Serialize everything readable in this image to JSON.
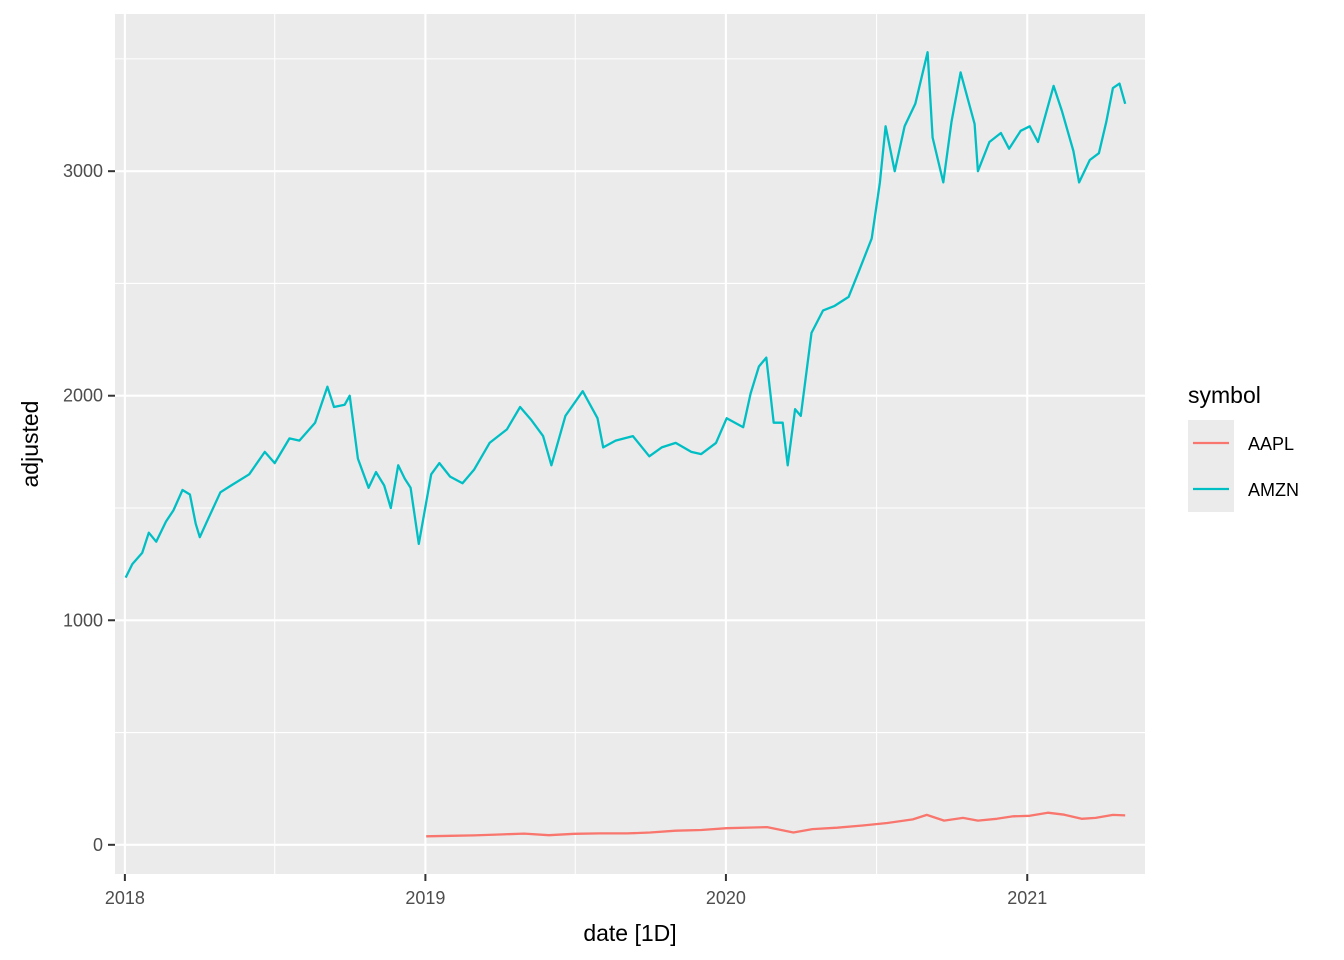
{
  "chart_data": {
    "type": "line",
    "xlabel": "date [1D]",
    "ylabel": "adjusted",
    "x_ticks": [
      "2018",
      "2019",
      "2020",
      "2021"
    ],
    "y_ticks": [
      "0",
      "1000",
      "2000",
      "3000"
    ],
    "xlim": [
      "2017-12-20",
      "2021-05-24"
    ],
    "ylim": [
      -130,
      3700
    ],
    "grid": true,
    "legend": {
      "title": "symbol",
      "position": "right",
      "entries": [
        "AAPL",
        "AMZN"
      ]
    },
    "colors": {
      "AAPL": "#F8766D",
      "AMZN": "#00BFC4",
      "panel": "#EBEBEB",
      "grid": "#FFFFFF"
    },
    "series": [
      {
        "name": "AAPL",
        "points": [
          [
            "2019-01-02",
            38
          ],
          [
            "2019-02-01",
            40
          ],
          [
            "2019-03-01",
            42
          ],
          [
            "2019-04-01",
            46
          ],
          [
            "2019-05-01",
            50
          ],
          [
            "2019-05-31",
            43
          ],
          [
            "2019-07-01",
            49
          ],
          [
            "2019-08-01",
            51
          ],
          [
            "2019-09-03",
            51
          ],
          [
            "2019-10-01",
            55
          ],
          [
            "2019-11-01",
            63
          ],
          [
            "2019-12-02",
            66
          ],
          [
            "2020-01-02",
            74
          ],
          [
            "2020-02-03",
            77
          ],
          [
            "2020-02-20",
            79
          ],
          [
            "2020-03-23",
            55
          ],
          [
            "2020-04-15",
            70
          ],
          [
            "2020-05-15",
            76
          ],
          [
            "2020-06-15",
            86
          ],
          [
            "2020-07-15",
            97
          ],
          [
            "2020-08-15",
            113
          ],
          [
            "2020-09-01",
            133
          ],
          [
            "2020-09-22",
            108
          ],
          [
            "2020-10-15",
            120
          ],
          [
            "2020-11-02",
            108
          ],
          [
            "2020-11-25",
            116
          ],
          [
            "2020-12-15",
            127
          ],
          [
            "2021-01-04",
            129
          ],
          [
            "2021-01-26",
            143
          ],
          [
            "2021-02-15",
            134
          ],
          [
            "2021-03-08",
            116
          ],
          [
            "2021-03-25",
            120
          ],
          [
            "2021-04-15",
            133
          ],
          [
            "2021-04-30",
            131
          ]
        ]
      },
      {
        "name": "AMZN",
        "points": [
          [
            "2018-01-02",
            1190
          ],
          [
            "2018-01-10",
            1250
          ],
          [
            "2018-01-22",
            1300
          ],
          [
            "2018-01-30",
            1390
          ],
          [
            "2018-02-08",
            1350
          ],
          [
            "2018-02-20",
            1440
          ],
          [
            "2018-03-01",
            1490
          ],
          [
            "2018-03-12",
            1580
          ],
          [
            "2018-03-21",
            1560
          ],
          [
            "2018-03-28",
            1430
          ],
          [
            "2018-04-02",
            1370
          ],
          [
            "2018-04-12",
            1450
          ],
          [
            "2018-04-27",
            1570
          ],
          [
            "2018-05-10",
            1600
          ],
          [
            "2018-06-01",
            1650
          ],
          [
            "2018-06-20",
            1750
          ],
          [
            "2018-07-02",
            1700
          ],
          [
            "2018-07-20",
            1810
          ],
          [
            "2018-08-01",
            1800
          ],
          [
            "2018-08-20",
            1880
          ],
          [
            "2018-09-04",
            2040
          ],
          [
            "2018-09-12",
            1950
          ],
          [
            "2018-09-25",
            1960
          ],
          [
            "2018-10-01",
            2000
          ],
          [
            "2018-10-11",
            1720
          ],
          [
            "2018-10-24",
            1590
          ],
          [
            "2018-11-02",
            1660
          ],
          [
            "2018-11-12",
            1600
          ],
          [
            "2018-11-20",
            1500
          ],
          [
            "2018-11-29",
            1690
          ],
          [
            "2018-12-07",
            1630
          ],
          [
            "2018-12-14",
            1590
          ],
          [
            "2018-12-24",
            1340
          ],
          [
            "2019-01-08",
            1650
          ],
          [
            "2019-01-18",
            1700
          ],
          [
            "2019-01-31",
            1640
          ],
          [
            "2019-02-15",
            1610
          ],
          [
            "2019-03-01",
            1670
          ],
          [
            "2019-03-20",
            1790
          ],
          [
            "2019-04-10",
            1850
          ],
          [
            "2019-04-26",
            1950
          ],
          [
            "2019-05-10",
            1890
          ],
          [
            "2019-05-24",
            1820
          ],
          [
            "2019-06-03",
            1690
          ],
          [
            "2019-06-20",
            1910
          ],
          [
            "2019-07-11",
            2020
          ],
          [
            "2019-07-29",
            1900
          ],
          [
            "2019-08-05",
            1770
          ],
          [
            "2019-08-20",
            1800
          ],
          [
            "2019-09-10",
            1820
          ],
          [
            "2019-09-30",
            1730
          ],
          [
            "2019-10-15",
            1770
          ],
          [
            "2019-11-01",
            1790
          ],
          [
            "2019-11-20",
            1750
          ],
          [
            "2019-12-02",
            1740
          ],
          [
            "2019-12-20",
            1790
          ],
          [
            "2020-01-02",
            1900
          ],
          [
            "2020-01-22",
            1860
          ],
          [
            "2020-01-31",
            2010
          ],
          [
            "2020-02-10",
            2130
          ],
          [
            "2020-02-19",
            2170
          ],
          [
            "2020-02-28",
            1880
          ],
          [
            "2020-03-10",
            1880
          ],
          [
            "2020-03-16",
            1690
          ],
          [
            "2020-03-25",
            1940
          ],
          [
            "2020-04-01",
            1910
          ],
          [
            "2020-04-14",
            2280
          ],
          [
            "2020-04-28",
            2380
          ],
          [
            "2020-05-12",
            2400
          ],
          [
            "2020-05-29",
            2440
          ],
          [
            "2020-06-10",
            2550
          ],
          [
            "2020-06-26",
            2700
          ],
          [
            "2020-07-06",
            2950
          ],
          [
            "2020-07-13",
            3200
          ],
          [
            "2020-07-24",
            3000
          ],
          [
            "2020-08-05",
            3200
          ],
          [
            "2020-08-18",
            3300
          ],
          [
            "2020-09-02",
            3530
          ],
          [
            "2020-09-08",
            3150
          ],
          [
            "2020-09-21",
            2950
          ],
          [
            "2020-10-01",
            3220
          ],
          [
            "2020-10-12",
            3440
          ],
          [
            "2020-10-29",
            3210
          ],
          [
            "2020-11-02",
            3000
          ],
          [
            "2020-11-16",
            3130
          ],
          [
            "2020-11-30",
            3170
          ],
          [
            "2020-12-10",
            3100
          ],
          [
            "2020-12-24",
            3180
          ],
          [
            "2021-01-04",
            3200
          ],
          [
            "2021-01-14",
            3130
          ],
          [
            "2021-02-02",
            3380
          ],
          [
            "2021-02-12",
            3270
          ],
          [
            "2021-02-26",
            3090
          ],
          [
            "2021-03-05",
            2950
          ],
          [
            "2021-03-18",
            3050
          ],
          [
            "2021-03-29",
            3080
          ],
          [
            "2021-04-07",
            3220
          ],
          [
            "2021-04-15",
            3370
          ],
          [
            "2021-04-23",
            3390
          ],
          [
            "2021-04-30",
            3300
          ]
        ]
      }
    ]
  }
}
